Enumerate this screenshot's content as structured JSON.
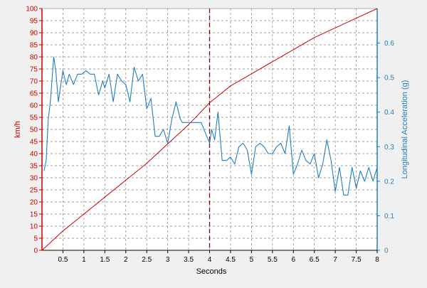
{
  "chart_data": {
    "type": "line",
    "xlabel": "Seconds",
    "ylabel_left": "km/h",
    "ylabel_right": "Longitudinal Acceleration (g)",
    "xlim": [
      0,
      8
    ],
    "ylim_left": [
      0,
      100
    ],
    "ylim_right": [
      0,
      0.7
    ],
    "x_ticks": [
      "0.5",
      "1",
      "1.5",
      "2",
      "2.5",
      "3",
      "3.5",
      "4",
      "4.5",
      "5",
      "5.5",
      "6",
      "6.5",
      "7",
      "7.5",
      "8"
    ],
    "y_left_ticks": [
      "0",
      "5",
      "10",
      "15",
      "20",
      "25",
      "30",
      "35",
      "40",
      "45",
      "50",
      "55",
      "60",
      "65",
      "70",
      "75",
      "80",
      "85",
      "90",
      "95",
      "100"
    ],
    "y_right_ticks": [
      "0",
      "0.1",
      "0.2",
      "0.3",
      "0.4",
      "0.5",
      "0.6"
    ],
    "grid": true,
    "marker_x": 4,
    "colors": {
      "speed": "#cc0000",
      "accel": "#1f7fbf",
      "marker": "#8b0000",
      "grid": "#7f7f7f"
    },
    "series": [
      {
        "axis": "left",
        "x": [
          0,
          0.5,
          1,
          1.5,
          2,
          2.5,
          3,
          3.5,
          4,
          4.5,
          5,
          5.5,
          6,
          6.5,
          7,
          7.5,
          8
        ],
        "y": [
          0,
          8,
          15,
          22,
          29,
          36,
          44,
          52,
          61,
          68,
          73,
          78,
          83,
          88,
          92,
          96,
          100
        ]
      },
      {
        "axis": "right",
        "x": [
          0.05,
          0.1,
          0.15,
          0.2,
          0.28,
          0.33,
          0.39,
          0.45,
          0.5,
          0.58,
          0.65,
          0.75,
          0.85,
          0.95,
          1.05,
          1.15,
          1.25,
          1.35,
          1.45,
          1.5,
          1.6,
          1.7,
          1.8,
          1.9,
          2.0,
          2.1,
          2.2,
          2.3,
          2.4,
          2.5,
          2.6,
          2.7,
          2.8,
          2.9,
          3.0,
          3.1,
          3.2,
          3.3,
          3.35,
          3.45,
          3.55,
          3.7,
          3.8,
          3.9,
          4.0,
          4.05,
          4.12,
          4.2,
          4.3,
          4.4,
          4.5,
          4.6,
          4.7,
          4.8,
          4.9,
          5.0,
          5.1,
          5.2,
          5.3,
          5.4,
          5.5,
          5.6,
          5.7,
          5.8,
          5.9,
          6.0,
          6.1,
          6.2,
          6.3,
          6.4,
          6.5,
          6.6,
          6.7,
          6.8,
          6.9,
          7.0,
          7.1,
          7.2,
          7.3,
          7.4,
          7.5,
          7.6,
          7.7,
          7.8,
          7.9,
          8.0
        ],
        "y": [
          0.23,
          0.26,
          0.38,
          0.43,
          0.56,
          0.52,
          0.43,
          0.48,
          0.52,
          0.48,
          0.51,
          0.48,
          0.51,
          0.51,
          0.52,
          0.51,
          0.51,
          0.45,
          0.49,
          0.47,
          0.51,
          0.43,
          0.51,
          0.49,
          0.48,
          0.43,
          0.53,
          0.49,
          0.51,
          0.41,
          0.44,
          0.33,
          0.33,
          0.35,
          0.31,
          0.38,
          0.43,
          0.38,
          0.37,
          0.37,
          0.37,
          0.37,
          0.37,
          0.34,
          0.31,
          0.35,
          0.32,
          0.4,
          0.26,
          0.26,
          0.27,
          0.25,
          0.3,
          0.31,
          0.29,
          0.22,
          0.3,
          0.31,
          0.3,
          0.28,
          0.28,
          0.3,
          0.31,
          0.28,
          0.36,
          0.22,
          0.25,
          0.29,
          0.26,
          0.25,
          0.28,
          0.21,
          0.25,
          0.32,
          0.26,
          0.17,
          0.24,
          0.16,
          0.16,
          0.24,
          0.18,
          0.23,
          0.2,
          0.24,
          0.2,
          0.24
        ]
      }
    ]
  }
}
